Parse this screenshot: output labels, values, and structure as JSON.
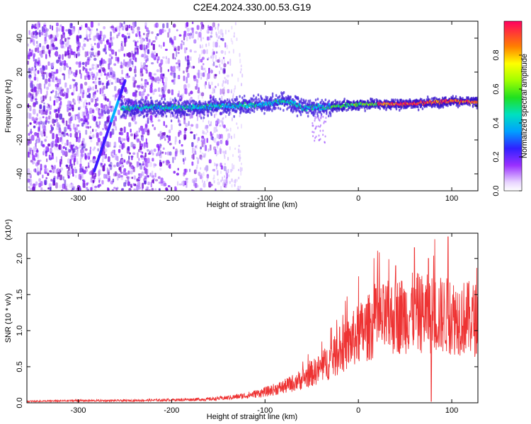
{
  "title": "C2E4.2024.330.00.53.G19",
  "chart_data": [
    {
      "type": "heatmap",
      "xlabel": "Height of straight line (km)",
      "ylabel": "Frequency (Hz)",
      "xlim": [
        -355,
        128
      ],
      "ylim": [
        -50,
        50
      ],
      "xticks": [
        -300,
        -200,
        -100,
        0,
        100
      ],
      "yticks": [
        -40,
        -20,
        0,
        20,
        40
      ],
      "colorbar": {
        "label": "Normalized spectral amplitude",
        "range": [
          0,
          1
        ],
        "ticks": [
          "0.0",
          "0.2",
          "0.4",
          "0.6",
          "0.8"
        ]
      },
      "features": {
        "noise_region_km": [
          -355,
          -140
        ],
        "linear_track": {
          "from": [
            -283,
            -38
          ],
          "to": [
            -250,
            15
          ]
        },
        "carrier_trace": [
          [
            -160,
            0
          ],
          [
            -130,
            0
          ],
          [
            -100,
            1
          ],
          [
            -80,
            3
          ],
          [
            -60,
            -1
          ],
          [
            -40,
            -1
          ],
          [
            -20,
            0
          ],
          [
            0,
            1
          ],
          [
            40,
            1
          ],
          [
            80,
            2
          ],
          [
            100,
            3
          ],
          [
            128,
            2
          ]
        ]
      }
    },
    {
      "type": "line",
      "xlabel": "Height of straight line (km)",
      "ylabel": "SNR (10 * v/v)",
      "y_multiplier": "(x10⁴)",
      "xlim": [
        -355,
        128
      ],
      "ylim": [
        0,
        2.35
      ],
      "xticks": [
        -300,
        -200,
        -100,
        0,
        100
      ],
      "yticks": [
        "0.0",
        "0.5",
        "1.0",
        "1.5",
        "2.0"
      ],
      "series_color": "#ee3333",
      "envelope": [
        [
          -355,
          0.02
        ],
        [
          -300,
          0.03
        ],
        [
          -250,
          0.03
        ],
        [
          -200,
          0.04
        ],
        [
          -160,
          0.05
        ],
        [
          -140,
          0.07
        ],
        [
          -120,
          0.1
        ],
        [
          -100,
          0.15
        ],
        [
          -80,
          0.22
        ],
        [
          -60,
          0.33
        ],
        [
          -40,
          0.48
        ],
        [
          -20,
          0.7
        ],
        [
          0,
          0.95
        ],
        [
          20,
          1.12
        ],
        [
          40,
          1.2
        ],
        [
          60,
          1.25
        ],
        [
          80,
          1.22
        ],
        [
          100,
          1.2
        ],
        [
          128,
          1.15
        ]
      ],
      "peaks": [
        [
          60,
          2.15
        ],
        [
          75,
          2.0
        ],
        [
          96,
          2.3
        ],
        [
          -20,
          1.05
        ],
        [
          40,
          1.9
        ]
      ],
      "dropouts": [
        [
          78,
          0.02
        ]
      ]
    }
  ]
}
